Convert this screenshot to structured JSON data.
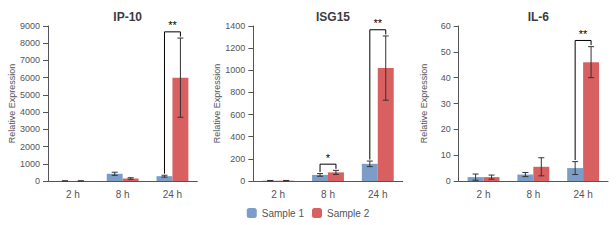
{
  "chart_data": [
    {
      "type": "bar",
      "title": "IP-10",
      "categories": [
        "2 h",
        "8 h",
        "24 h"
      ],
      "ylabel": "Relative Expression",
      "series": [
        {
          "name": "Sample 1",
          "color": "#7B9DC8",
          "values": [
            3,
            420,
            280
          ],
          "errors": [
            2,
            90,
            55
          ]
        },
        {
          "name": "Sample 2",
          "color": "#D96060",
          "values": [
            3,
            145,
            6000
          ],
          "errors": [
            2,
            45,
            2300
          ]
        }
      ],
      "ylim": [
        0,
        9000
      ],
      "yticks": [
        0,
        1000,
        2000,
        3000,
        4000,
        5000,
        6000,
        7000,
        8000,
        9000
      ],
      "annotations": [
        {
          "text": "**",
          "category": "24 h"
        }
      ],
      "grid": false,
      "legend": "bottom"
    },
    {
      "type": "bar",
      "title": "ISG15",
      "categories": [
        "2 h",
        "8 h",
        "24 h"
      ],
      "ylabel": "Relative Expression",
      "series": [
        {
          "name": "Sample 1",
          "color": "#7B9DC8",
          "values": [
            3,
            55,
            155
          ],
          "errors": [
            2,
            12,
            25
          ]
        },
        {
          "name": "Sample 2",
          "color": "#D96060",
          "values": [
            3,
            78,
            1020
          ],
          "errors": [
            2,
            18,
            290
          ]
        }
      ],
      "ylim": [
        0,
        1400
      ],
      "yticks": [
        0,
        200,
        400,
        600,
        800,
        1000,
        1200,
        1400
      ],
      "annotations": [
        {
          "text": "*",
          "category": "8 h"
        },
        {
          "text": "**",
          "category": "24 h"
        }
      ],
      "grid": false,
      "legend": "bottom"
    },
    {
      "type": "bar",
      "title": "IL-6",
      "categories": [
        "2 h",
        "8 h",
        "24 h"
      ],
      "ylabel": "Relative Expression",
      "series": [
        {
          "name": "Sample 1",
          "color": "#7B9DC8",
          "values": [
            1.5,
            2.5,
            5
          ],
          "errors": [
            1.2,
            0.8,
            2.5
          ]
        },
        {
          "name": "Sample 2",
          "color": "#D96060",
          "values": [
            1.5,
            5.5,
            46
          ],
          "errors": [
            0.8,
            3.5,
            6
          ]
        }
      ],
      "ylim": [
        0,
        60
      ],
      "yticks": [
        0,
        10,
        20,
        30,
        40,
        50,
        60
      ],
      "annotations": [
        {
          "text": "**",
          "category": "24 h"
        }
      ],
      "grid": false,
      "legend": "bottom"
    }
  ]
}
